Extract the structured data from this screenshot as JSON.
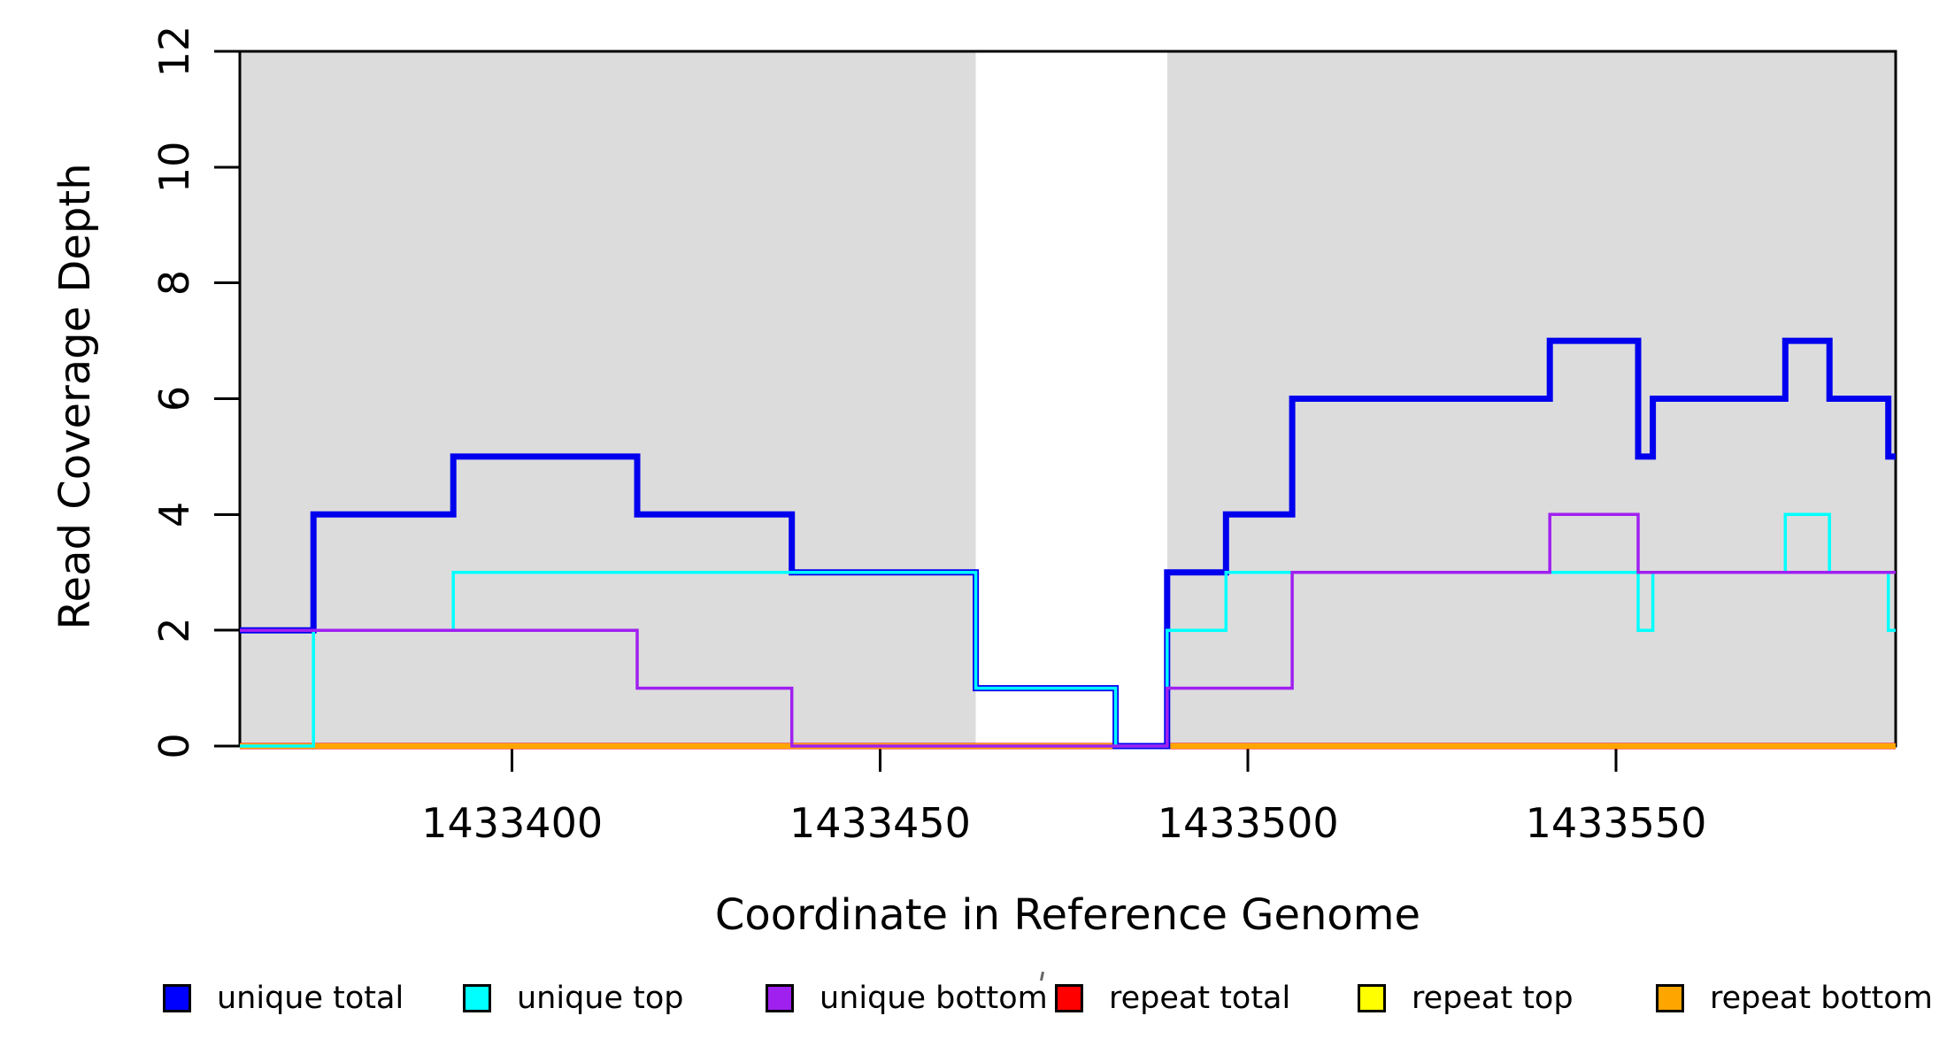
{
  "figure": {
    "background": "#FFFFFF",
    "frame_color": "#000000",
    "shading_color": "#DCDCDC"
  },
  "chart_data": {
    "type": "line",
    "step_style": true,
    "title": "",
    "xlabel": "Coordinate in Reference Genome",
    "ylabel": "Read Coverage Depth",
    "xlim": [
      1433363,
      1433588
    ],
    "ylim": [
      0,
      12
    ],
    "x_ticks": [
      1433400,
      1433450,
      1433500,
      1433550
    ],
    "y_ticks": [
      0,
      2,
      4,
      6,
      8,
      10,
      12
    ],
    "grid": false,
    "legend_position": "bottom",
    "shaded_regions": [
      {
        "name": "unique-region-left",
        "x0": 1433363,
        "x1": 1433463
      },
      {
        "name": "unique-region-right",
        "x0": 1433489,
        "x1": 1433588
      }
    ],
    "series": [
      {
        "name": "unique total",
        "color": "#0000EE",
        "line_width": 7,
        "steps": [
          [
            1433363,
            2
          ],
          [
            1433373,
            4
          ],
          [
            1433392,
            5
          ],
          [
            1433417,
            4
          ],
          [
            1433438,
            3
          ],
          [
            1433463,
            1
          ],
          [
            1433482,
            0
          ],
          [
            1433489,
            3
          ],
          [
            1433497,
            4
          ],
          [
            1433506,
            6
          ],
          [
            1433541,
            7
          ],
          [
            1433553,
            5
          ],
          [
            1433555,
            6
          ],
          [
            1433573,
            7
          ],
          [
            1433579,
            6
          ],
          [
            1433587,
            5
          ]
        ]
      },
      {
        "name": "unique top",
        "color": "#00FFFF",
        "line_width": 3.5,
        "steps": [
          [
            1433363,
            0
          ],
          [
            1433373,
            2
          ],
          [
            1433392,
            3
          ],
          [
            1433463,
            1
          ],
          [
            1433482,
            0
          ],
          [
            1433489,
            2
          ],
          [
            1433497,
            3
          ],
          [
            1433553,
            2
          ],
          [
            1433555,
            3
          ],
          [
            1433573,
            4
          ],
          [
            1433579,
            3
          ],
          [
            1433587,
            2
          ]
        ]
      },
      {
        "name": "unique bottom",
        "color": "#A020F0",
        "line_width": 3.5,
        "steps": [
          [
            1433363,
            2
          ],
          [
            1433417,
            1
          ],
          [
            1433438,
            0
          ],
          [
            1433489,
            1
          ],
          [
            1433506,
            3
          ],
          [
            1433541,
            4
          ],
          [
            1433553,
            3
          ]
        ]
      },
      {
        "name": "repeat total",
        "color": "#FF0000",
        "line_width": 7,
        "steps": [
          [
            1433363,
            0
          ]
        ]
      },
      {
        "name": "repeat top",
        "color": "#FFFF00",
        "line_width": 5.5,
        "steps": [
          [
            1433363,
            0
          ]
        ]
      },
      {
        "name": "repeat bottom",
        "color": "#FFA500",
        "line_width": 4.5,
        "steps": [
          [
            1433363,
            0
          ]
        ]
      }
    ],
    "draw_order": [
      3,
      4,
      5,
      0,
      1,
      2
    ]
  },
  "legend": {
    "items": [
      {
        "label": "unique total",
        "color": "#0000FF"
      },
      {
        "label": "unique top",
        "color": "#00FFFF"
      },
      {
        "label": "unique bottom",
        "color": "#A020F0"
      },
      {
        "label": "repeat total",
        "color": "#FF0000"
      },
      {
        "label": "repeat top",
        "color": "#FFFF00"
      },
      {
        "label": "repeat bottom",
        "color": "#FFA500"
      }
    ]
  }
}
